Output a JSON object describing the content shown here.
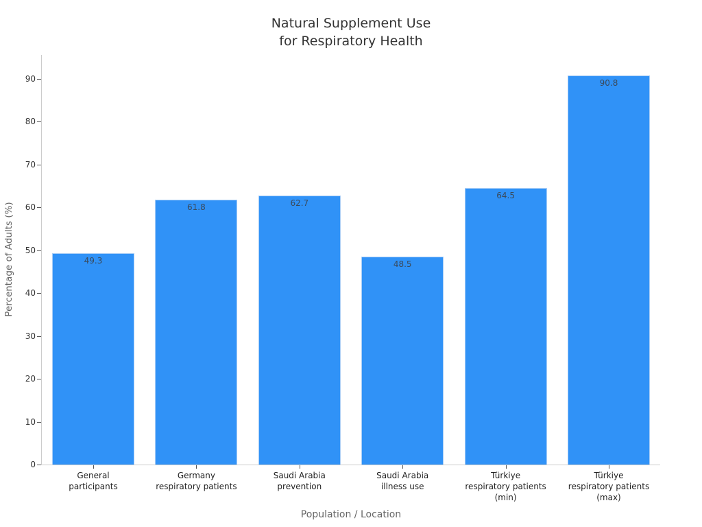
{
  "chart_data": {
    "type": "bar",
    "title": "Natural Supplement Use for Respiratory Health",
    "title_lines": [
      "Natural Supplement Use",
      "for Respiratory Health"
    ],
    "xlabel": "Population / Location",
    "ylabel": "Percentage of Adults (%)",
    "categories": [
      "General participants",
      "Germany respiratory patients",
      "Saudi Arabia prevention",
      "Saudi Arabia illness use",
      "Türkiye respiratory patients (min)",
      "Türkiye respiratory patients (max)"
    ],
    "category_lines": [
      [
        "General",
        "participants"
      ],
      [
        "Germany",
        "respiratory patients"
      ],
      [
        "Saudi Arabia",
        "prevention"
      ],
      [
        "Saudi Arabia",
        "illness use"
      ],
      [
        "Türkiye",
        "respiratory patients",
        "(min)"
      ],
      [
        "Türkiye",
        "respiratory patients",
        "(max)"
      ]
    ],
    "values": [
      49.3,
      61.8,
      62.7,
      48.5,
      64.5,
      90.8
    ],
    "value_labels": [
      "49.3",
      "61.8",
      "62.7",
      "48.5",
      "64.5",
      "90.8"
    ],
    "yticks": [
      "0",
      "10",
      "20",
      "30",
      "40",
      "50",
      "60",
      "70",
      "80",
      "90"
    ],
    "ylim": [
      0,
      95.6
    ],
    "grid": false,
    "legend": "none",
    "bar_color": "#3092f7"
  }
}
